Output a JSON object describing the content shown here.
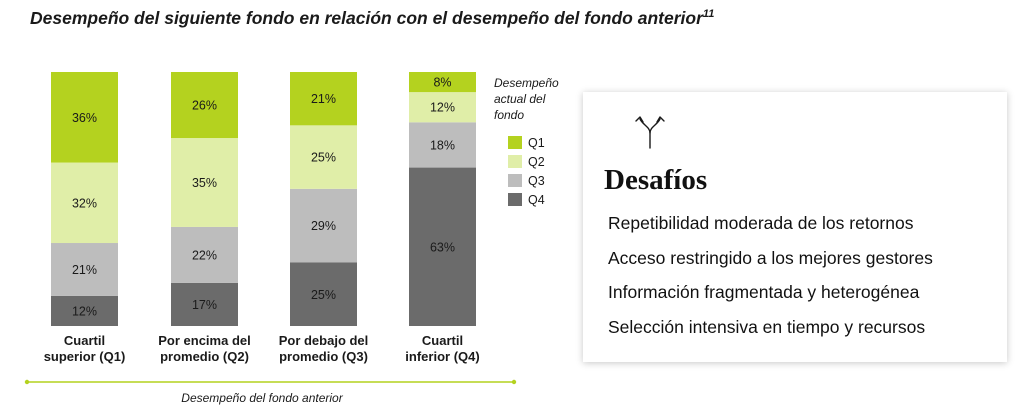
{
  "title": "Desempeño del siguiente fondo en relación con el desempeño del fondo anterior",
  "title_sup": "11",
  "colors": {
    "Q1": "#b4d21f",
    "Q2": "#e0eea8",
    "Q3": "#bdbdbd",
    "Q4": "#6b6b6b",
    "axis_line": "#b4d21f"
  },
  "chart_data": {
    "type": "bar",
    "stacked": true,
    "categories": [
      [
        "Cuartil",
        "superior (Q1)"
      ],
      [
        "Por encima del",
        "promedio (Q2)"
      ],
      [
        "Por debajo del",
        "promedio (Q3)"
      ],
      [
        "Cuartil",
        "inferior (Q4)"
      ]
    ],
    "series": [
      {
        "name": "Q4",
        "values": [
          12,
          17,
          25,
          63
        ]
      },
      {
        "name": "Q3",
        "values": [
          21,
          22,
          29,
          18
        ]
      },
      {
        "name": "Q2",
        "values": [
          32,
          35,
          25,
          12
        ]
      },
      {
        "name": "Q1",
        "values": [
          36,
          26,
          21,
          8
        ]
      }
    ],
    "value_suffix": "%",
    "xlabel": "Desempeño del fondo anterior",
    "legend_title": [
      "Desempeño",
      "actual del",
      "fondo"
    ],
    "legend_order": [
      "Q1",
      "Q2",
      "Q3",
      "Q4"
    ],
    "legend_position": "right",
    "grid": false
  },
  "panel": {
    "icon": "split-arrows-icon",
    "heading": "Desafíos",
    "items": [
      "Repetibilidad moderada de los retornos",
      "Acceso restringido a los mejores gestores",
      "Información fragmentada y heterogénea",
      "Selección intensiva en tiempo y recursos"
    ]
  }
}
